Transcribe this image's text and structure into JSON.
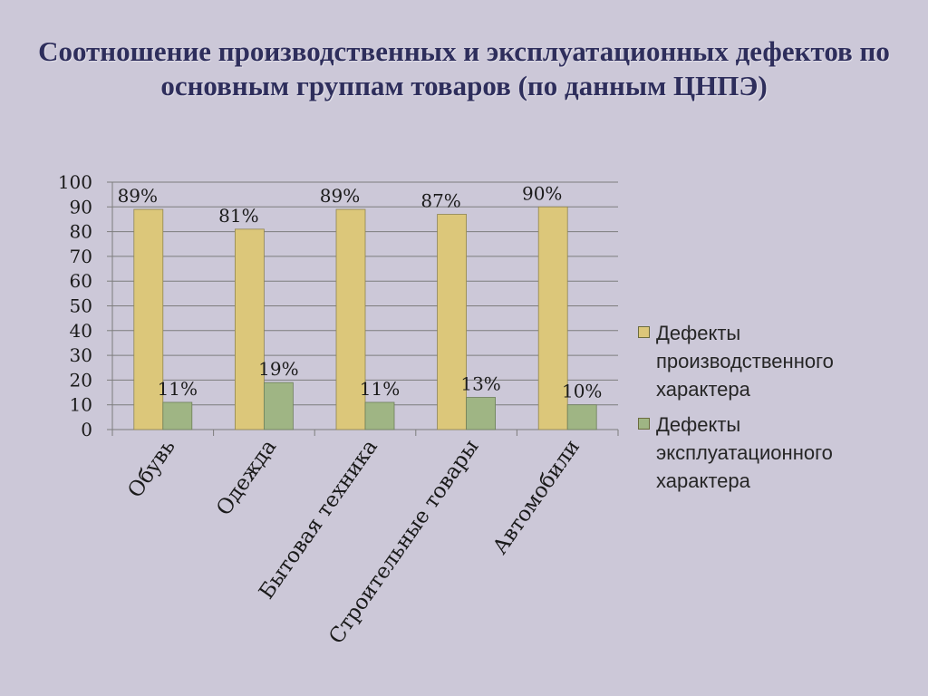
{
  "title": "Соотношение производственных и эксплуатационных дефектов по основным группам товаров (по данным ЦНПЭ)",
  "chart_data": {
    "type": "bar",
    "categories": [
      "Обувь",
      "Одежда",
      "Бытовая техника",
      "Строительные товары",
      "Автомобили"
    ],
    "series": [
      {
        "name": "Дефекты производственного характера",
        "values": [
          89,
          81,
          89,
          87,
          90
        ],
        "labels": [
          "89%",
          "81%",
          "89%",
          "87%",
          "90%"
        ],
        "color": "#dcc77a"
      },
      {
        "name": "Дефекты эксплуатационного характера",
        "values": [
          11,
          19,
          11,
          13,
          10
        ],
        "labels": [
          "11%",
          "19%",
          "11%",
          "13%",
          "10%"
        ],
        "color": "#9fb584"
      }
    ],
    "ylim": [
      0,
      100
    ],
    "yticks": [
      "0",
      "10",
      "20",
      "30",
      "40",
      "50",
      "60",
      "70",
      "80",
      "90",
      "100"
    ],
    "grid": true,
    "legend": "right"
  }
}
